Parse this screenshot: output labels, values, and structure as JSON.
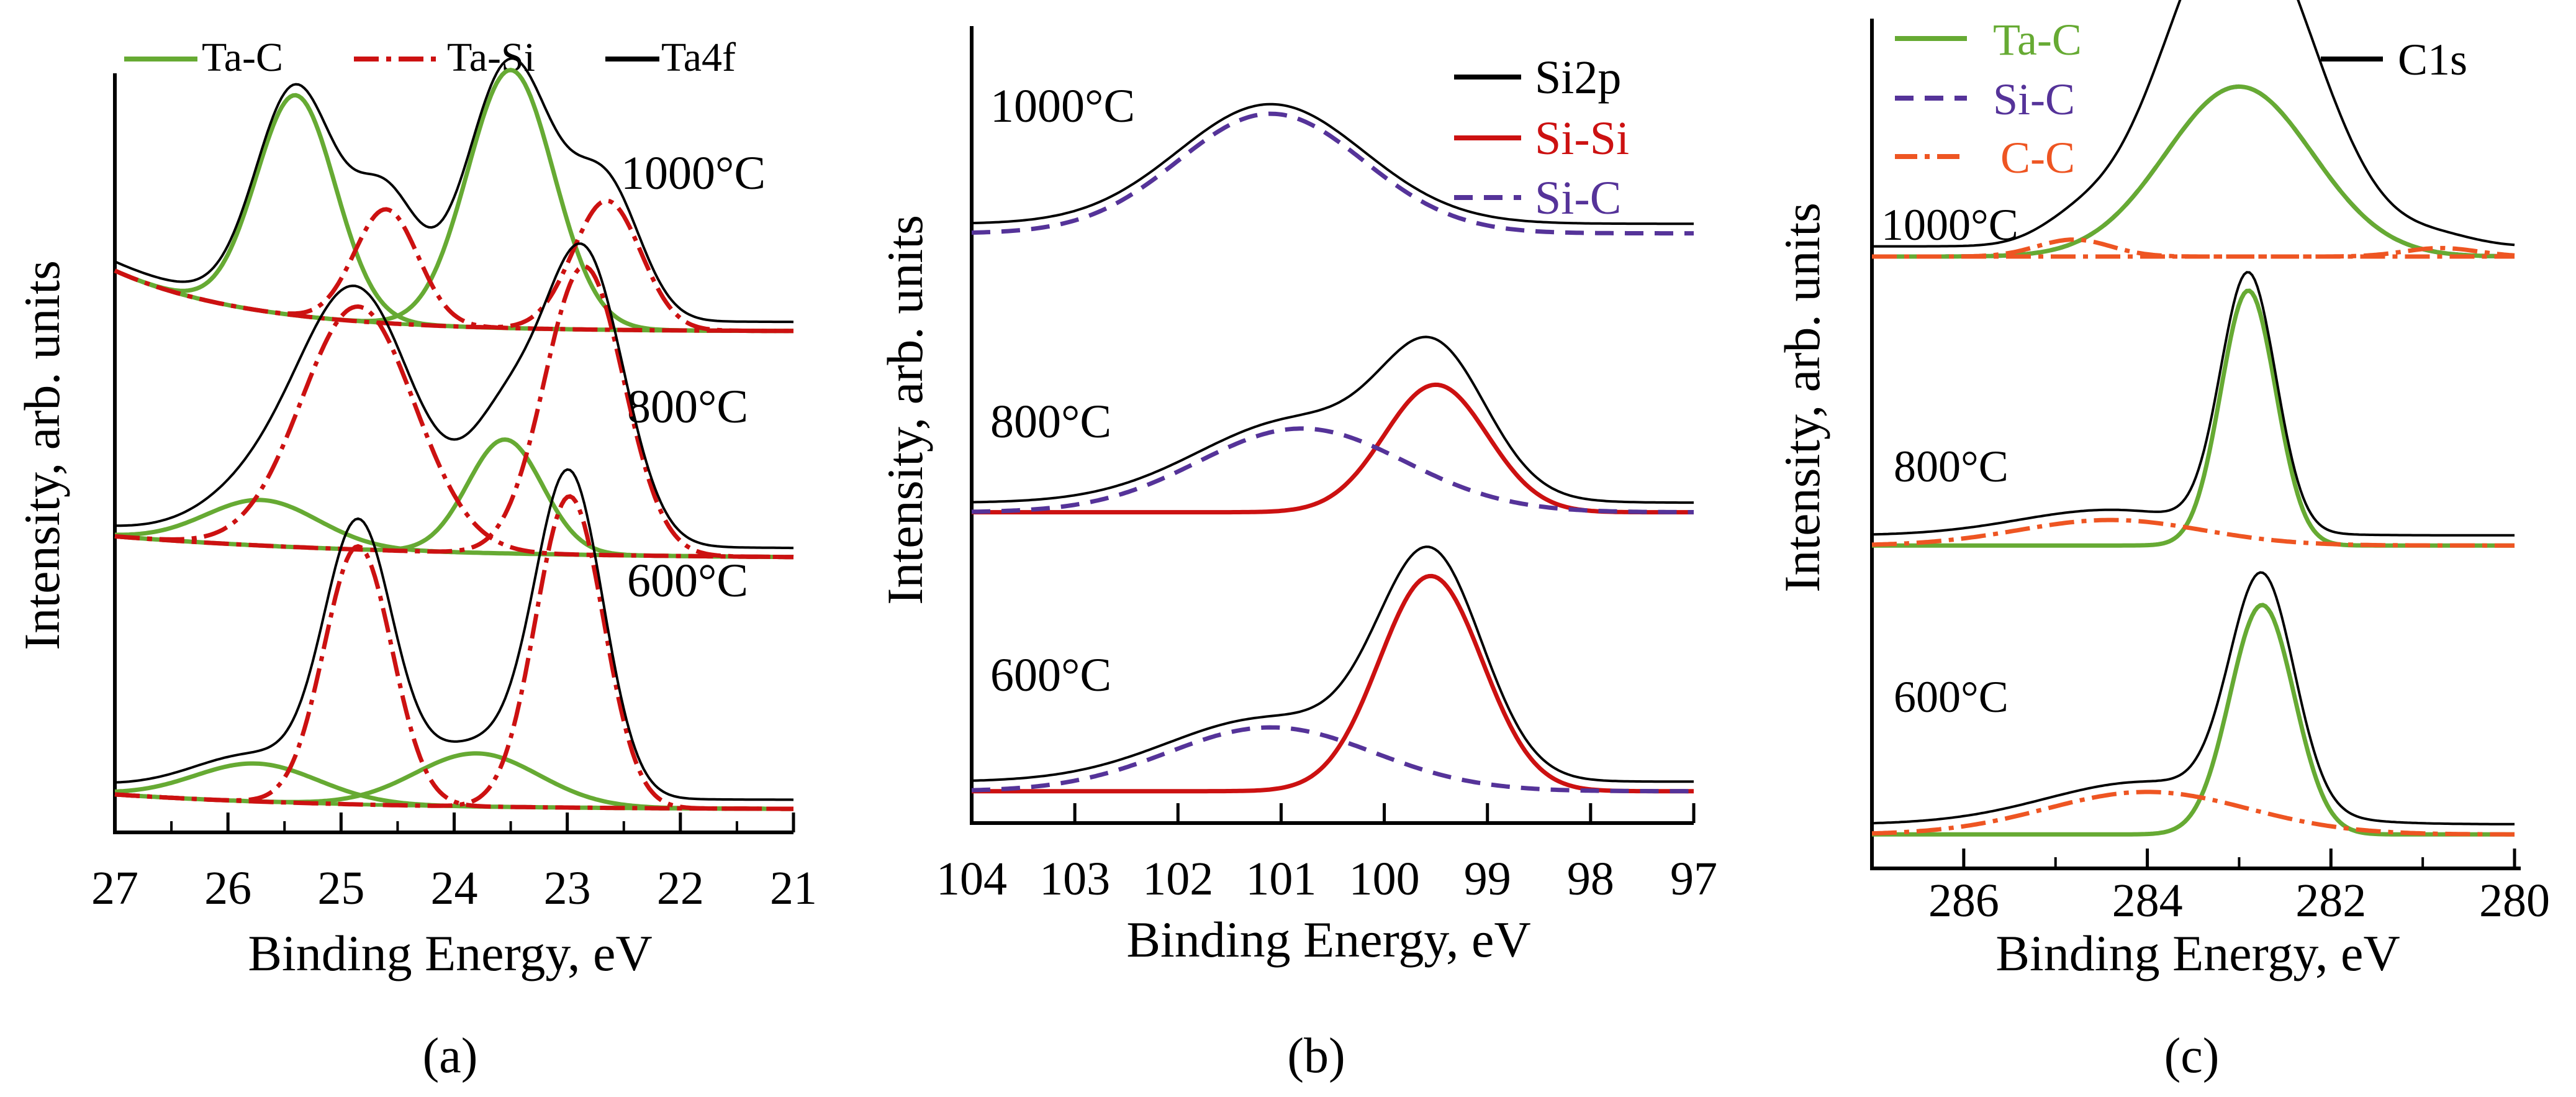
{
  "chart_data": [
    {
      "panel": "a",
      "panel_label": "(a)",
      "type": "line",
      "xlabel": "Binding Energy, eV",
      "ylabel": "Intensity, arb. units",
      "xlim": [
        27,
        21
      ],
      "xticks": [
        27,
        26,
        25,
        24,
        23,
        22,
        21
      ],
      "legend": [
        {
          "key": "tac",
          "label": "Ta-C",
          "color": "#66aa33",
          "dash": "solid"
        },
        {
          "key": "tasi",
          "label": "Ta-Si",
          "color": "#cc1111",
          "dash": "dashdot"
        },
        {
          "key": "total",
          "label": "Ta4f",
          "color": "#000000",
          "dash": "solid"
        }
      ],
      "spectra": [
        {
          "label": "1000°C",
          "offset": 0.66,
          "peaks": [
            {
              "series": "tac",
              "center": 25.4,
              "height": 0.29,
              "width": 0.35
            },
            {
              "series": "tac",
              "center": 23.5,
              "height": 0.34,
              "width": 0.38
            },
            {
              "series": "tasi",
              "center": 24.6,
              "height": 0.15,
              "width": 0.28
            },
            {
              "series": "tasi",
              "center": 22.65,
              "height": 0.17,
              "width": 0.3
            }
          ],
          "background": {
            "series": "tac",
            "start": 0.08,
            "decay": 1.2
          }
        },
        {
          "label": "800°C",
          "offset": 0.36,
          "peaks": [
            {
              "series": "tac",
              "center": 25.7,
              "height": 0.06,
              "width": 0.5
            },
            {
              "series": "tac",
              "center": 23.55,
              "height": 0.15,
              "width": 0.33
            },
            {
              "series": "tasi",
              "center": 24.85,
              "height": 0.32,
              "width": 0.5
            },
            {
              "series": "tasi",
              "center": 22.85,
              "height": 0.38,
              "width": 0.35
            }
          ],
          "background": {
            "series": "tasi",
            "start": 0.03,
            "decay": 2.5
          }
        },
        {
          "label": "600°C",
          "offset": 0.03,
          "peaks": [
            {
              "series": "tac",
              "center": 25.75,
              "height": 0.05,
              "width": 0.55
            },
            {
              "series": "tac",
              "center": 23.8,
              "height": 0.07,
              "width": 0.55
            },
            {
              "series": "tasi",
              "center": 24.85,
              "height": 0.34,
              "width": 0.3
            },
            {
              "series": "tasi",
              "center": 22.98,
              "height": 0.41,
              "width": 0.3
            }
          ],
          "background": {
            "series": "tac",
            "start": 0.02,
            "decay": 2.0
          }
        }
      ]
    },
    {
      "panel": "b",
      "panel_label": "(b)",
      "type": "line",
      "xlabel": "Binding Energy, eV",
      "ylabel": "Intensity, arb. units",
      "xlim": [
        104,
        97
      ],
      "xticks": [
        104,
        103,
        102,
        101,
        100,
        99,
        98,
        97
      ],
      "legend": [
        {
          "key": "total",
          "label": "Si2p",
          "color": "#000000",
          "dash": "solid"
        },
        {
          "key": "sisi",
          "label": "Si-Si",
          "color": "#cc1111",
          "dash": "solid"
        },
        {
          "key": "sic",
          "label": "Si-C",
          "color": "#553399",
          "dash": "dashed"
        }
      ],
      "spectra": [
        {
          "label": "1000°C",
          "offset": 0.74,
          "peaks": [
            {
              "series": "sic",
              "center": 101.1,
              "height": 0.15,
              "width": 0.9
            }
          ]
        },
        {
          "label": "800°C",
          "offset": 0.39,
          "peaks": [
            {
              "series": "sisi",
              "center": 99.5,
              "height": 0.16,
              "width": 0.5
            },
            {
              "series": "sic",
              "center": 100.8,
              "height": 0.105,
              "width": 1.0
            }
          ]
        },
        {
          "label": "600°C",
          "offset": 0.04,
          "peaks": [
            {
              "series": "sisi",
              "center": 99.55,
              "height": 0.27,
              "width": 0.5
            },
            {
              "series": "sic",
              "center": 101.1,
              "height": 0.08,
              "width": 1.0
            }
          ]
        }
      ]
    },
    {
      "panel": "c",
      "panel_label": "(c)",
      "type": "line",
      "xlabel": "Binding Energy, eV",
      "ylabel": "Intensity, arb. units",
      "xlim": [
        287,
        280
      ],
      "xticks": [
        286,
        284,
        282,
        280
      ],
      "legend": [
        {
          "key": "tac",
          "label": "Ta-C",
          "color": "#66aa33",
          "dash": "solid"
        },
        {
          "key": "sic",
          "label": "Si-C",
          "color": "#553399",
          "dash": "dashed"
        },
        {
          "key": "cc",
          "label": "C-C",
          "color": "#ee5522",
          "dash": "dashdot"
        },
        {
          "key": "total",
          "label": "C1s",
          "color": "#000000",
          "dash": "solid"
        }
      ],
      "spectra": [
        {
          "label": "1000°C",
          "offset": 0.72,
          "peaks": [
            {
              "series": "sic",
              "center": 283.0,
              "height": 0.2,
              "width": 0.8
            },
            {
              "series": "tac",
              "center": 283.0,
              "height": 0.2,
              "width": 0.8
            },
            {
              "series": "cc",
              "center": 284.8,
              "height": 0.02,
              "width": 0.4
            },
            {
              "series": "cc",
              "center": 280.8,
              "height": 0.01,
              "width": 0.4
            }
          ]
        },
        {
          "label": "800°C",
          "offset": 0.38,
          "peaks": [
            {
              "series": "tac",
              "center": 282.9,
              "height": 0.3,
              "width": 0.3
            },
            {
              "series": "cc",
              "center": 284.4,
              "height": 0.03,
              "width": 1.0
            }
          ]
        },
        {
          "label": "600°C",
          "offset": 0.04,
          "peaks": [
            {
              "series": "tac",
              "center": 282.75,
              "height": 0.27,
              "width": 0.35
            },
            {
              "series": "cc",
              "center": 284.0,
              "height": 0.05,
              "width": 1.1
            }
          ]
        }
      ]
    }
  ]
}
